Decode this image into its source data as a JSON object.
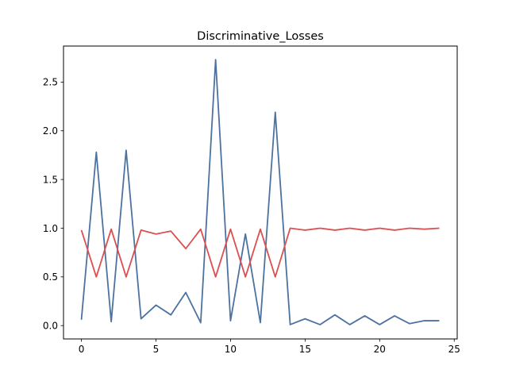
{
  "chart_data": {
    "type": "line",
    "title": "Discriminative_Losses",
    "xlabel": "",
    "ylabel": "",
    "xlim": [
      -1.2,
      25.2
    ],
    "ylim": [
      -0.137,
      2.87
    ],
    "xticks": [
      0,
      5,
      10,
      15,
      20,
      25
    ],
    "yticks": [
      0.0,
      0.5,
      1.0,
      1.5,
      2.0,
      2.5
    ],
    "xtick_labels": [
      "0",
      "5",
      "10",
      "15",
      "20",
      "25"
    ],
    "ytick_labels": [
      "0.0",
      "0.5",
      "1.0",
      "1.5",
      "2.0",
      "2.5"
    ],
    "grid": false,
    "legend": "none",
    "x": [
      0,
      1,
      2,
      3,
      4,
      5,
      6,
      7,
      8,
      9,
      10,
      11,
      12,
      13,
      14,
      15,
      16,
      17,
      18,
      19,
      20,
      21,
      22,
      23,
      24
    ],
    "series": [
      {
        "color": "#4c72a0",
        "values": [
          0.06,
          1.78,
          0.04,
          1.8,
          0.07,
          0.21,
          0.11,
          0.34,
          0.03,
          2.73,
          0.05,
          0.94,
          0.03,
          2.19,
          0.01,
          0.07,
          0.01,
          0.11,
          0.01,
          0.1,
          0.01,
          0.1,
          0.02,
          0.05,
          0.05
        ]
      },
      {
        "color": "#dc5050",
        "values": [
          0.98,
          0.5,
          0.99,
          0.5,
          0.98,
          0.94,
          0.97,
          0.79,
          0.99,
          0.5,
          0.99,
          0.5,
          0.99,
          0.5,
          1.0,
          0.98,
          1.0,
          0.98,
          1.0,
          0.98,
          1.0,
          0.98,
          1.0,
          0.99,
          1.0
        ]
      }
    ]
  }
}
